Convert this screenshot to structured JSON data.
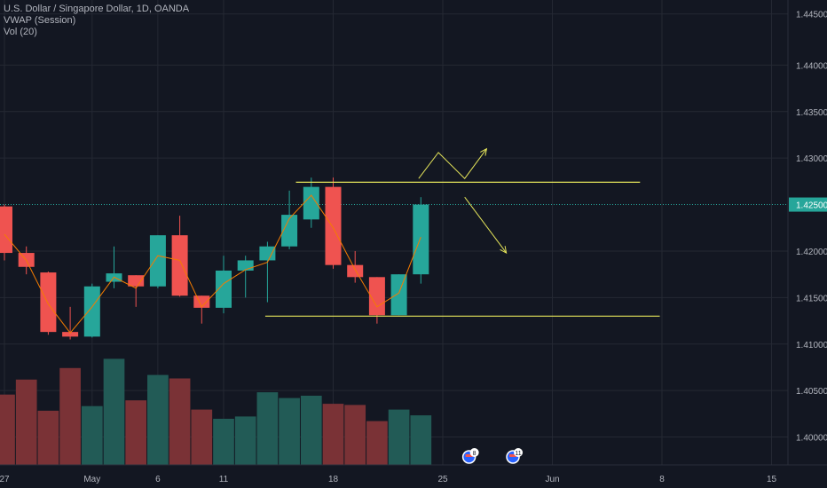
{
  "chart_data": {
    "type": "candlestick",
    "legend_lines": [
      "U.S. Dollar / Singapore Dollar, 1D, OANDA",
      "VWAP (Session)",
      "Vol (20)"
    ],
    "ylim": [
      1.397,
      1.447
    ],
    "y_ticks": [
      {
        "value": 1.4455,
        "label": "1.44500"
      },
      {
        "value": 1.44,
        "label": "1.44000"
      },
      {
        "value": 1.435,
        "label": "1.43500"
      },
      {
        "value": 1.43,
        "label": "1.43000"
      },
      {
        "value": 1.42,
        "label": "1.42000"
      },
      {
        "value": 1.415,
        "label": "1.41500"
      },
      {
        "value": 1.41,
        "label": "1.41000"
      },
      {
        "value": 1.405,
        "label": "1.40500"
      },
      {
        "value": 1.4,
        "label": "1.40000"
      }
    ],
    "x_ticks": [
      {
        "index": 0,
        "label": "27"
      },
      {
        "index": 4,
        "label": "May"
      },
      {
        "index": 7,
        "label": "6"
      },
      {
        "index": 10,
        "label": "11"
      },
      {
        "index": 15,
        "label": "18"
      },
      {
        "index": 20,
        "label": "25"
      },
      {
        "index": 25,
        "label": "Jun"
      },
      {
        "index": 30,
        "label": "8"
      },
      {
        "index": 35,
        "label": "15"
      }
    ],
    "current_price": {
      "value": 1.425,
      "label": "1.42500"
    },
    "candles": [
      {
        "open": 1.4248,
        "high": 1.425,
        "low": 1.419,
        "close": 1.4198
      },
      {
        "open": 1.4198,
        "high": 1.4205,
        "low": 1.4175,
        "close": 1.4183
      },
      {
        "open": 1.4177,
        "high": 1.4178,
        "low": 1.411,
        "close": 1.4113
      },
      {
        "open": 1.4113,
        "high": 1.414,
        "low": 1.4105,
        "close": 1.4108
      },
      {
        "open": 1.4108,
        "high": 1.4165,
        "low": 1.4107,
        "close": 1.4162
      },
      {
        "open": 1.4167,
        "high": 1.4205,
        "low": 1.416,
        "close": 1.4176
      },
      {
        "open": 1.4174,
        "high": 1.4174,
        "low": 1.414,
        "close": 1.4162
      },
      {
        "open": 1.4162,
        "high": 1.4217,
        "low": 1.416,
        "close": 1.4217
      },
      {
        "open": 1.4217,
        "high": 1.4238,
        "low": 1.4151,
        "close": 1.4152
      },
      {
        "open": 1.4152,
        "high": 1.4152,
        "low": 1.4122,
        "close": 1.4139
      },
      {
        "open": 1.4139,
        "high": 1.4195,
        "low": 1.4133,
        "close": 1.4179
      },
      {
        "open": 1.4179,
        "high": 1.4195,
        "low": 1.415,
        "close": 1.419
      },
      {
        "open": 1.419,
        "high": 1.421,
        "low": 1.4145,
        "close": 1.4205
      },
      {
        "open": 1.4205,
        "high": 1.4265,
        "low": 1.4202,
        "close": 1.4239
      },
      {
        "open": 1.4234,
        "high": 1.4279,
        "low": 1.4225,
        "close": 1.4269
      },
      {
        "open": 1.4269,
        "high": 1.4279,
        "low": 1.4181,
        "close": 1.4185
      },
      {
        "open": 1.4185,
        "high": 1.42,
        "low": 1.4166,
        "close": 1.4172
      },
      {
        "open": 1.4172,
        "high": 1.4172,
        "low": 1.4122,
        "close": 1.4131
      },
      {
        "open": 1.4131,
        "high": 1.4175,
        "low": 1.4131,
        "close": 1.4175
      },
      {
        "open": 1.4175,
        "high": 1.4258,
        "low": 1.4165,
        "close": 1.425
      }
    ],
    "vwap": [
      1.4218,
      1.419,
      1.4143,
      1.4112,
      1.414,
      1.4172,
      1.416,
      1.4195,
      1.419,
      1.414,
      1.4165,
      1.418,
      1.4188,
      1.4235,
      1.426,
      1.4225,
      1.418,
      1.414,
      1.4155,
      1.4215
    ],
    "volume": [
      0.61,
      0.74,
      0.47,
      0.84,
      0.51,
      0.92,
      0.56,
      0.78,
      0.75,
      0.48,
      0.4,
      0.42,
      0.63,
      0.58,
      0.6,
      0.53,
      0.52,
      0.38,
      0.48,
      0.43
    ],
    "volume_max": 1.0,
    "levels": [
      {
        "name": "resistance",
        "value": 1.4274,
        "from_index": 13.3,
        "to_index": 29.0
      },
      {
        "name": "support",
        "value": 1.413,
        "from_index": 11.9,
        "to_index": 29.9
      }
    ],
    "arrows": [
      {
        "name": "bullish-path",
        "points": [
          [
            18.9,
            1.4278
          ],
          [
            19.8,
            1.4306
          ],
          [
            21.0,
            1.4278
          ],
          [
            22.0,
            1.431
          ]
        ]
      },
      {
        "name": "bearish-path",
        "points": [
          [
            21.0,
            1.4258
          ],
          [
            22.9,
            1.4198
          ]
        ]
      }
    ],
    "events": [
      {
        "index": 21.2,
        "count": "8"
      },
      {
        "index": 23.2,
        "count": "11"
      }
    ],
    "colors": {
      "background": "#131722",
      "grid": "#242833",
      "up": "#26a69a",
      "down": "#ef5350",
      "up_volume": "#225b56",
      "down_volume": "#7a3236",
      "vwap": "#f57c00",
      "drawing": "#e4e45a",
      "price_line": "#26a69a",
      "text": "#b2b5be"
    }
  }
}
